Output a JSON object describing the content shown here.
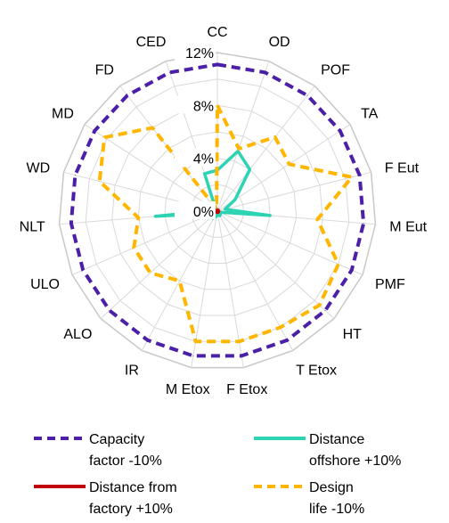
{
  "chart_data": {
    "type": "radar",
    "categories": [
      "CC",
      "OD",
      "POF",
      "TA",
      "F Eut",
      "M Eut",
      "PMF",
      "HT",
      "T Etox",
      "F Etox",
      "M Etox",
      "IR",
      "ALO",
      "ULO",
      "NLT",
      "WD",
      "MD",
      "FD",
      "CED"
    ],
    "ticks": [
      "0%",
      "4%",
      "8%",
      "12%"
    ],
    "rlim": [
      0,
      12
    ],
    "grid": true,
    "legend_position": "bottom",
    "series": [
      {
        "name": "Capacity\nfactor -10%",
        "color": "#4B1FA8",
        "style": "dashed",
        "values": [
          11.1,
          11.1,
          11.1,
          11.1,
          11.1,
          11.1,
          11.1,
          11.1,
          11.1,
          11.1,
          11.1,
          11.1,
          11.1,
          11.1,
          11.1,
          11.1,
          11.1,
          11.1,
          11.1
        ]
      },
      {
        "name": "Distance\noffshore +10%",
        "color": "#2DD4B4",
        "style": "solid",
        "values": [
          3.1,
          4.8,
          4.0,
          1.6,
          0.6,
          4.0,
          0.2,
          0.3,
          0.4,
          0.2,
          0.4,
          0.6,
          0.7,
          0.4,
          4.7,
          0.2,
          0.3,
          0.2,
          3.0
        ]
      },
      {
        "name": "Distance from\nfactory +10%",
        "color": "#C0000A",
        "style": "solid",
        "values": [
          0.1,
          0.1,
          0.1,
          0.1,
          0.1,
          0.1,
          0.1,
          0.1,
          0.1,
          0.1,
          0.1,
          0.1,
          0.1,
          0.1,
          0.1,
          0.1,
          0.1,
          0.1,
          0.1
        ]
      },
      {
        "name": "Design\nlife -10%",
        "color": "#FFB600",
        "style": "dashed",
        "values": [
          8.0,
          5.0,
          7.1,
          6.5,
          10.5,
          7.6,
          10.0,
          10.5,
          10.0,
          10.0,
          10.0,
          6.0,
          6.9,
          6.9,
          6.0,
          9.2,
          10.2,
          8.0,
          0.2
        ]
      }
    ]
  }
}
